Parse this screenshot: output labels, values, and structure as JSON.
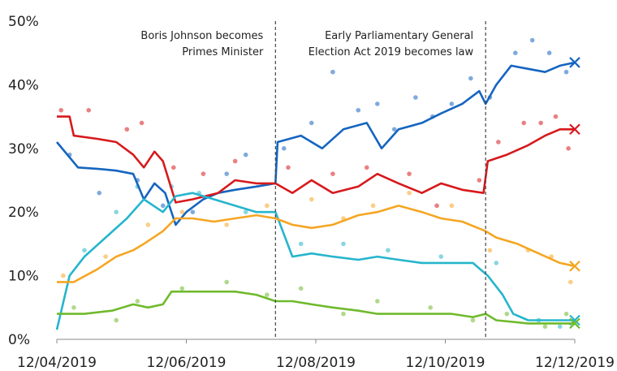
{
  "chart_data": {
    "type": "line",
    "title": "",
    "xlabel": "",
    "ylabel": "",
    "ylim": [
      0,
      50
    ],
    "yticks": [
      "0%",
      "10%",
      "20%",
      "30%",
      "40%",
      "50%"
    ],
    "xtick_labels": [
      "12/04/2019",
      "12/06/2019",
      "12/08/2019",
      "12/10/2019",
      "12/12/2019"
    ],
    "xlim": [
      "2019-04-12",
      "2019-12-12"
    ],
    "grid": false,
    "legend": "none",
    "annotations": [
      {
        "date": "2019-07-24",
        "lines": [
          "Boris Johnson becomes",
          "Primes Minister"
        ]
      },
      {
        "date": "2019-10-31",
        "lines": [
          "Early Parliamentary General",
          "Election Act 2019 becomes law"
        ]
      }
    ],
    "series": [
      {
        "color": "#1565c0",
        "marker": "x",
        "trend": [
          [
            "2019-04-12",
            31
          ],
          [
            "2019-04-22",
            27
          ],
          [
            "2019-05-01",
            26.8
          ],
          [
            "2019-05-10",
            26.5
          ],
          [
            "2019-05-18",
            26
          ],
          [
            "2019-05-23",
            22
          ],
          [
            "2019-05-28",
            24.5
          ],
          [
            "2019-06-02",
            23
          ],
          [
            "2019-06-07",
            18
          ],
          [
            "2019-06-12",
            20
          ],
          [
            "2019-06-20",
            22
          ],
          [
            "2019-06-27",
            23
          ],
          [
            "2019-07-05",
            23.5
          ],
          [
            "2019-07-15",
            24
          ],
          [
            "2019-07-24",
            24.5
          ],
          [
            "2019-07-25",
            31
          ],
          [
            "2019-08-05",
            32
          ],
          [
            "2019-08-15",
            30
          ],
          [
            "2019-08-25",
            33
          ],
          [
            "2019-09-05",
            34
          ],
          [
            "2019-09-12",
            30
          ],
          [
            "2019-09-20",
            33
          ],
          [
            "2019-10-01",
            34
          ],
          [
            "2019-10-10",
            35.5
          ],
          [
            "2019-10-20",
            37
          ],
          [
            "2019-10-28",
            39
          ],
          [
            "2019-10-31",
            37
          ],
          [
            "2019-11-05",
            40
          ],
          [
            "2019-11-12",
            43
          ],
          [
            "2019-11-20",
            42.5
          ],
          [
            "2019-11-28",
            42
          ],
          [
            "2019-12-05",
            43
          ],
          [
            "2019-12-12",
            43.5
          ]
        ],
        "scatter": [
          [
            "2019-04-18",
            29
          ],
          [
            "2019-05-02",
            23
          ],
          [
            "2019-05-20",
            25
          ],
          [
            "2019-06-01",
            21
          ],
          [
            "2019-06-15",
            20
          ],
          [
            "2019-07-01",
            26
          ],
          [
            "2019-07-10",
            29
          ],
          [
            "2019-07-28",
            30
          ],
          [
            "2019-08-10",
            34
          ],
          [
            "2019-08-20",
            42
          ],
          [
            "2019-09-01",
            36
          ],
          [
            "2019-09-10",
            37
          ],
          [
            "2019-09-18",
            33
          ],
          [
            "2019-09-28",
            38
          ],
          [
            "2019-10-06",
            35
          ],
          [
            "2019-10-15",
            37
          ],
          [
            "2019-10-24",
            41
          ],
          [
            "2019-11-02",
            38
          ],
          [
            "2019-11-14",
            45
          ],
          [
            "2019-11-22",
            47
          ],
          [
            "2019-11-30",
            45
          ],
          [
            "2019-12-08",
            42
          ]
        ]
      },
      {
        "color": "#d7191c",
        "marker": "x",
        "trend": [
          [
            "2019-04-12",
            35
          ],
          [
            "2019-04-18",
            35
          ],
          [
            "2019-04-20",
            32
          ],
          [
            "2019-05-01",
            31.5
          ],
          [
            "2019-05-10",
            31
          ],
          [
            "2019-05-18",
            29
          ],
          [
            "2019-05-23",
            27
          ],
          [
            "2019-05-28",
            29.5
          ],
          [
            "2019-06-01",
            28
          ],
          [
            "2019-06-07",
            21.5
          ],
          [
            "2019-06-15",
            22
          ],
          [
            "2019-06-27",
            23
          ],
          [
            "2019-07-05",
            25
          ],
          [
            "2019-07-15",
            24.5
          ],
          [
            "2019-07-24",
            24.5
          ],
          [
            "2019-08-01",
            23
          ],
          [
            "2019-08-10",
            25
          ],
          [
            "2019-08-20",
            23
          ],
          [
            "2019-09-01",
            24
          ],
          [
            "2019-09-10",
            26
          ],
          [
            "2019-09-20",
            24.5
          ],
          [
            "2019-10-01",
            23
          ],
          [
            "2019-10-10",
            24.5
          ],
          [
            "2019-10-20",
            23.5
          ],
          [
            "2019-10-30",
            23
          ],
          [
            "2019-11-01",
            28
          ],
          [
            "2019-11-10",
            29
          ],
          [
            "2019-11-20",
            30.5
          ],
          [
            "2019-11-28",
            32
          ],
          [
            "2019-12-05",
            33
          ],
          [
            "2019-12-12",
            33
          ]
        ],
        "scatter": [
          [
            "2019-04-14",
            36
          ],
          [
            "2019-04-27",
            36
          ],
          [
            "2019-05-15",
            33
          ],
          [
            "2019-05-22",
            34
          ],
          [
            "2019-06-06",
            27
          ],
          [
            "2019-06-20",
            26
          ],
          [
            "2019-07-05",
            28
          ],
          [
            "2019-07-30",
            27
          ],
          [
            "2019-08-20",
            26
          ],
          [
            "2019-09-05",
            27
          ],
          [
            "2019-09-25",
            26
          ],
          [
            "2019-10-08",
            21
          ],
          [
            "2019-10-28",
            25
          ],
          [
            "2019-11-06",
            31
          ],
          [
            "2019-11-18",
            34
          ],
          [
            "2019-11-26",
            34
          ],
          [
            "2019-12-03",
            35
          ],
          [
            "2019-12-09",
            30
          ]
        ]
      },
      {
        "color": "#26b5cc",
        "marker": "x",
        "trend": [
          [
            "2019-04-12",
            1.5
          ],
          [
            "2019-04-18",
            10
          ],
          [
            "2019-04-25",
            13
          ],
          [
            "2019-05-05",
            16
          ],
          [
            "2019-05-15",
            19
          ],
          [
            "2019-05-23",
            22
          ],
          [
            "2019-06-01",
            20
          ],
          [
            "2019-06-07",
            22.5
          ],
          [
            "2019-06-15",
            23
          ],
          [
            "2019-06-25",
            22
          ],
          [
            "2019-07-05",
            21
          ],
          [
            "2019-07-15",
            20
          ],
          [
            "2019-07-24",
            20
          ],
          [
            "2019-08-01",
            13
          ],
          [
            "2019-08-10",
            13.5
          ],
          [
            "2019-08-20",
            13
          ],
          [
            "2019-09-01",
            12.5
          ],
          [
            "2019-09-10",
            13
          ],
          [
            "2019-09-20",
            12.5
          ],
          [
            "2019-10-01",
            12
          ],
          [
            "2019-10-15",
            12
          ],
          [
            "2019-10-25",
            12
          ],
          [
            "2019-11-01",
            10
          ],
          [
            "2019-11-08",
            7
          ],
          [
            "2019-11-13",
            4
          ],
          [
            "2019-11-20",
            3
          ],
          [
            "2019-12-12",
            3
          ]
        ],
        "scatter": [
          [
            "2019-04-25",
            14
          ],
          [
            "2019-05-10",
            20
          ],
          [
            "2019-05-20",
            24
          ],
          [
            "2019-06-05",
            24
          ],
          [
            "2019-06-18",
            23
          ],
          [
            "2019-07-10",
            20
          ],
          [
            "2019-08-05",
            15
          ],
          [
            "2019-08-25",
            15
          ],
          [
            "2019-09-15",
            14
          ],
          [
            "2019-10-10",
            13
          ],
          [
            "2019-11-05",
            12
          ],
          [
            "2019-11-25",
            3
          ],
          [
            "2019-12-05",
            2
          ]
        ]
      },
      {
        "color": "#f5a623",
        "marker": "x",
        "trend": [
          [
            "2019-04-12",
            9
          ],
          [
            "2019-04-20",
            9
          ],
          [
            "2019-05-01",
            11
          ],
          [
            "2019-05-10",
            13
          ],
          [
            "2019-05-18",
            14
          ],
          [
            "2019-05-23",
            15
          ],
          [
            "2019-06-01",
            17
          ],
          [
            "2019-06-07",
            19
          ],
          [
            "2019-06-15",
            19
          ],
          [
            "2019-06-25",
            18.5
          ],
          [
            "2019-07-05",
            19
          ],
          [
            "2019-07-15",
            19.5
          ],
          [
            "2019-07-24",
            19
          ],
          [
            "2019-08-01",
            18
          ],
          [
            "2019-08-10",
            17.5
          ],
          [
            "2019-08-20",
            18
          ],
          [
            "2019-09-01",
            19.5
          ],
          [
            "2019-09-10",
            20
          ],
          [
            "2019-09-20",
            21
          ],
          [
            "2019-10-01",
            20
          ],
          [
            "2019-10-10",
            19
          ],
          [
            "2019-10-20",
            18.5
          ],
          [
            "2019-10-31",
            17
          ],
          [
            "2019-11-05",
            16
          ],
          [
            "2019-11-15",
            15
          ],
          [
            "2019-11-25",
            13.5
          ],
          [
            "2019-12-05",
            12
          ],
          [
            "2019-12-12",
            11.5
          ]
        ],
        "scatter": [
          [
            "2019-04-15",
            10
          ],
          [
            "2019-05-05",
            13
          ],
          [
            "2019-05-25",
            18
          ],
          [
            "2019-06-10",
            20
          ],
          [
            "2019-07-01",
            18
          ],
          [
            "2019-07-20",
            21
          ],
          [
            "2019-08-10",
            22
          ],
          [
            "2019-08-25",
            19
          ],
          [
            "2019-09-08",
            21
          ],
          [
            "2019-09-25",
            23
          ],
          [
            "2019-10-15",
            21
          ],
          [
            "2019-11-02",
            14
          ],
          [
            "2019-11-20",
            14
          ],
          [
            "2019-12-01",
            13
          ],
          [
            "2019-12-10",
            9
          ]
        ]
      },
      {
        "color": "#6fba2c",
        "marker": "x",
        "trend": [
          [
            "2019-04-12",
            4
          ],
          [
            "2019-04-25",
            4
          ],
          [
            "2019-05-08",
            4.5
          ],
          [
            "2019-05-18",
            5.5
          ],
          [
            "2019-05-25",
            5
          ],
          [
            "2019-06-01",
            5.5
          ],
          [
            "2019-06-05",
            7.5
          ],
          [
            "2019-06-12",
            7.5
          ],
          [
            "2019-06-25",
            7.5
          ],
          [
            "2019-07-05",
            7.5
          ],
          [
            "2019-07-15",
            7
          ],
          [
            "2019-07-24",
            6
          ],
          [
            "2019-08-01",
            6
          ],
          [
            "2019-08-10",
            5.5
          ],
          [
            "2019-08-20",
            5
          ],
          [
            "2019-09-01",
            4.5
          ],
          [
            "2019-09-10",
            4
          ],
          [
            "2019-09-20",
            4
          ],
          [
            "2019-10-01",
            4
          ],
          [
            "2019-10-15",
            4
          ],
          [
            "2019-10-25",
            3.5
          ],
          [
            "2019-10-31",
            4
          ],
          [
            "2019-11-05",
            3
          ],
          [
            "2019-11-20",
            2.5
          ],
          [
            "2019-12-05",
            2.5
          ],
          [
            "2019-12-12",
            2.5
          ]
        ],
        "scatter": [
          [
            "2019-04-20",
            5
          ],
          [
            "2019-05-10",
            3
          ],
          [
            "2019-05-20",
            6
          ],
          [
            "2019-06-10",
            8
          ],
          [
            "2019-07-01",
            9
          ],
          [
            "2019-07-20",
            7
          ],
          [
            "2019-08-05",
            8
          ],
          [
            "2019-08-25",
            4
          ],
          [
            "2019-09-10",
            6
          ],
          [
            "2019-10-05",
            5
          ],
          [
            "2019-10-25",
            3
          ],
          [
            "2019-11-10",
            4
          ],
          [
            "2019-11-28",
            2
          ],
          [
            "2019-12-08",
            4
          ]
        ]
      }
    ]
  }
}
